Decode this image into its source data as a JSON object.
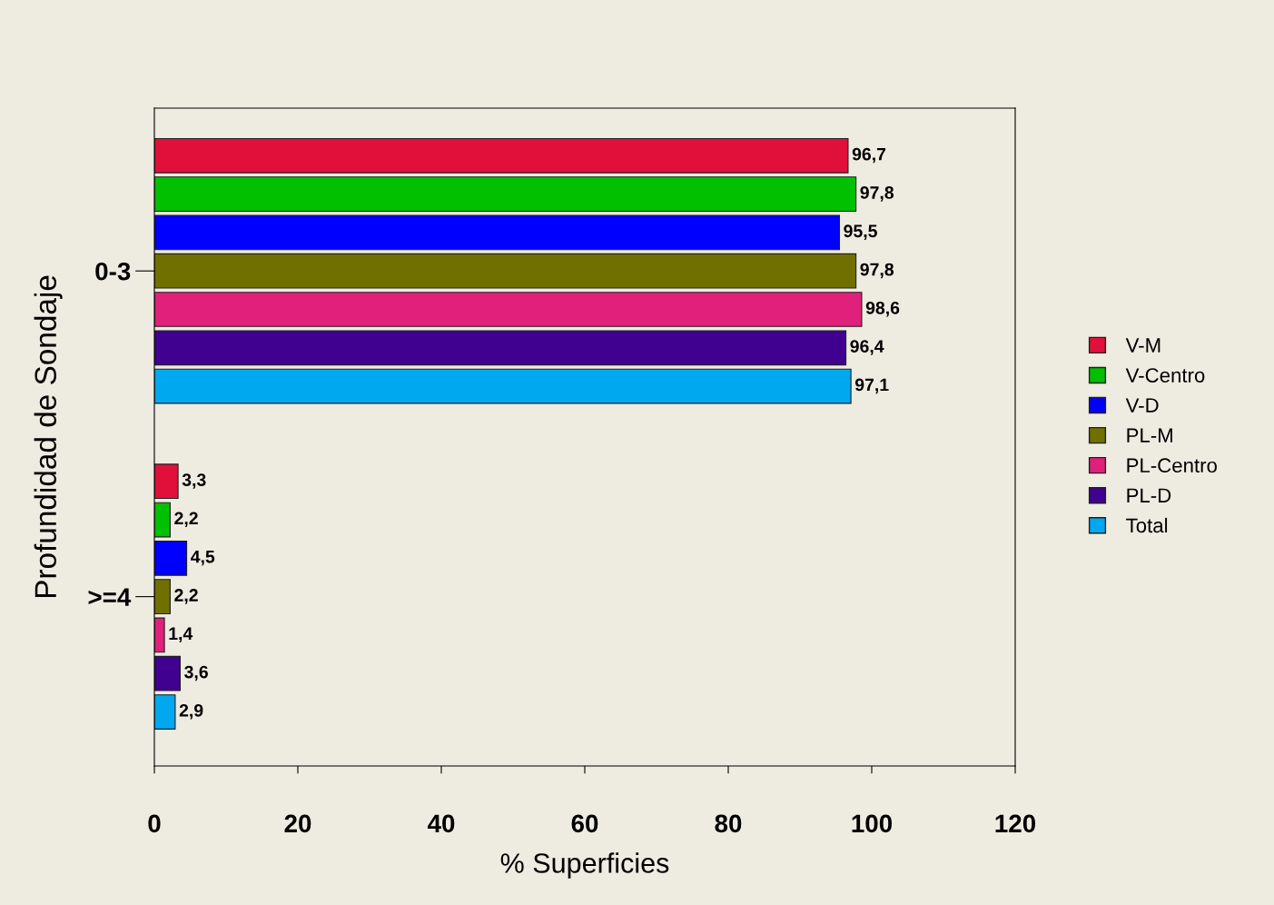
{
  "chart_data": {
    "type": "bar",
    "orientation": "horizontal",
    "xlabel": "% Superficies",
    "ylabel": "Profundidad de Sondaje",
    "categories": [
      "0-3",
      ">=4"
    ],
    "series": [
      {
        "name": "V-M",
        "color": "#e0103a",
        "values": [
          96.7,
          3.3
        ],
        "value_labels": [
          "96,7",
          "3,3"
        ]
      },
      {
        "name": "V-Centro",
        "color": "#00c000",
        "values": [
          97.8,
          2.2
        ],
        "value_labels": [
          "97,8",
          "2,2"
        ]
      },
      {
        "name": "V-D",
        "color": "#0000ff",
        "values": [
          95.5,
          4.5
        ],
        "value_labels": [
          "95,5",
          "4,5"
        ]
      },
      {
        "name": "PL-M",
        "color": "#707000",
        "values": [
          97.8,
          2.2
        ],
        "value_labels": [
          "97,8",
          "2,2"
        ]
      },
      {
        "name": "PL-Centro",
        "color": "#e0207a",
        "values": [
          98.6,
          1.4
        ],
        "value_labels": [
          "98,6",
          "1,4"
        ]
      },
      {
        "name": "PL-D",
        "color": "#400090",
        "values": [
          96.4,
          3.6
        ],
        "value_labels": [
          "96,4",
          "3,6"
        ]
      },
      {
        "name": "Total",
        "color": "#00a8f0",
        "values": [
          97.1,
          2.9
        ],
        "value_labels": [
          "97,1",
          "2,9"
        ]
      }
    ],
    "xlim": [
      0,
      120
    ],
    "xticks": [
      0,
      20,
      40,
      60,
      80,
      100,
      120
    ],
    "grid": false,
    "legend": "right"
  }
}
